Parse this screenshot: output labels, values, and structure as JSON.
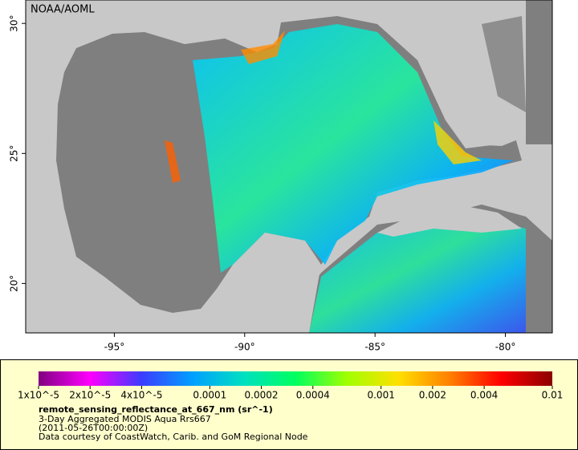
{
  "map": {
    "label": "NOAA/AOML",
    "xlim": [
      -98.4,
      -78.2
    ],
    "ylim": [
      18.1,
      30.9
    ],
    "xticks": [
      {
        "value": -95,
        "label": "-95°"
      },
      {
        "value": -90,
        "label": "-90°"
      },
      {
        "value": -85,
        "label": "-85°"
      },
      {
        "value": -80,
        "label": "-80°"
      }
    ],
    "yticks": [
      {
        "value": 20,
        "label": "20°"
      },
      {
        "value": 25,
        "label": "25°"
      },
      {
        "value": 30,
        "label": "30°"
      }
    ]
  },
  "colorbar": {
    "scale": "log",
    "lim": [
      1e-05,
      0.01
    ],
    "ticks": [
      {
        "value": 1e-05,
        "label": "1x10^-5"
      },
      {
        "value": 2e-05,
        "label": "2x10^-5"
      },
      {
        "value": 4e-05,
        "label": "4x10^-5"
      },
      0.0001,
      0.0002,
      0.0004,
      0.001,
      0.002,
      0.004,
      0.01
    ],
    "colors": [
      "#800080",
      "#ff00ff",
      "#3c3cff",
      "#00a0ff",
      "#00e0c0",
      "#00ff60",
      "#a0ff00",
      "#ffe000",
      "#ff8000",
      "#ff0000",
      "#8b0000"
    ]
  },
  "legend": {
    "title": "remote_sensing_reflectance_at_667_nm (sr^-1)",
    "lines": [
      "3-Day Aggregated MODIS Aqua Rrs667",
      "(2011-05-26T00:00:00Z)",
      "Data courtesy of CoastWatch, Carib. and GoM Regional Node"
    ]
  }
}
